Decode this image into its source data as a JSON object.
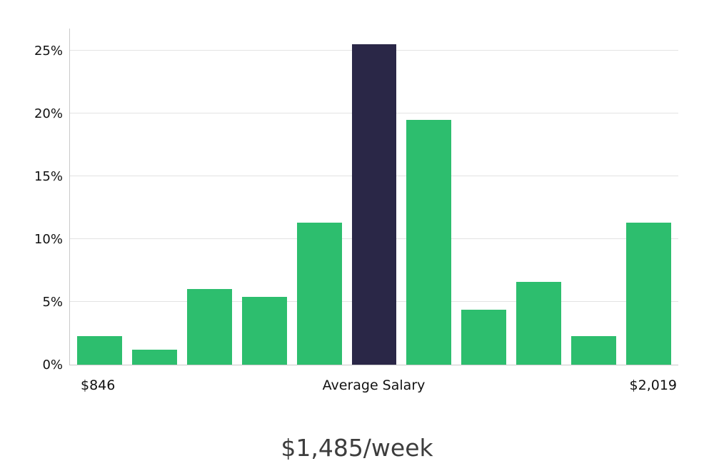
{
  "chart_data": {
    "type": "bar",
    "title": "$1,485/week",
    "description": "Weekly salary distribution histogram with highlighted average salary bar",
    "y_ticks": [
      "0%",
      "5%",
      "10%",
      "15%",
      "20%",
      "25%"
    ],
    "y_tick_values": [
      0,
      5,
      10,
      15,
      20,
      25
    ],
    "ylim": [
      0,
      26.8
    ],
    "values": [
      2.3,
      1.2,
      6.0,
      5.4,
      11.3,
      25.5,
      19.5,
      4.4,
      6.6,
      2.3,
      11.3
    ],
    "highlight_index": 5,
    "x_axis_labels": {
      "left": "$846",
      "center": "Average Salary",
      "right": "$2,019"
    },
    "grid": "horizontal",
    "legend": "none",
    "colors": {
      "bar": "#2dbe6e",
      "highlight": "#2a2747",
      "gridline": "#e3e3e3",
      "axis": "#c9c9c9",
      "tick_text": "#111111",
      "caption_text": "#3d3d3d",
      "background": "#ffffff"
    }
  }
}
